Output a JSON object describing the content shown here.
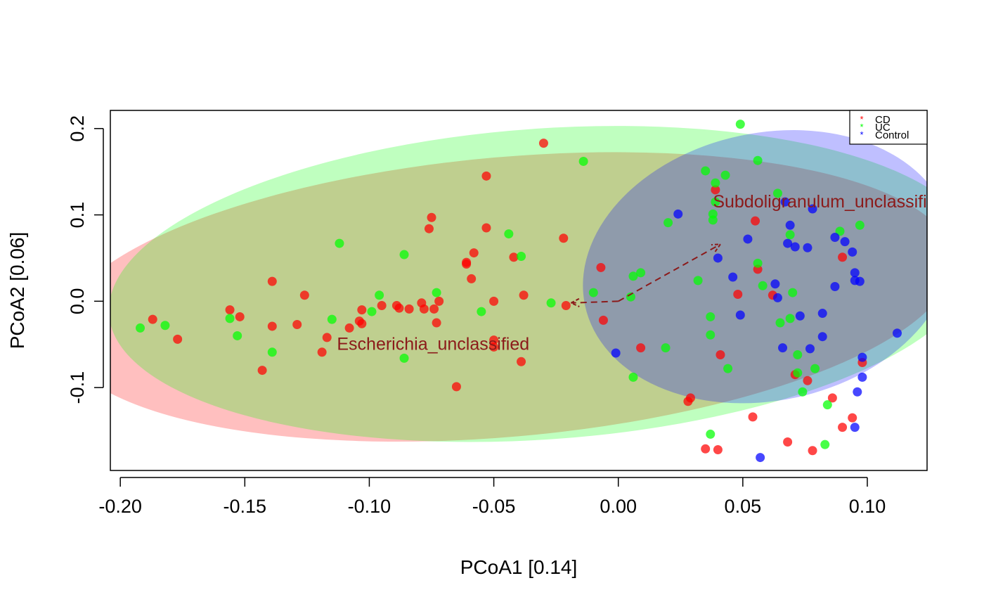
{
  "chart_data": {
    "type": "scatter",
    "title": "",
    "xlabel": "PCoA1 [0.14]",
    "ylabel": "PCoA2 [0.06]",
    "xlim": [
      -0.204,
      0.124
    ],
    "ylim": [
      -0.196,
      0.221
    ],
    "xticks": [
      -0.2,
      -0.15,
      -0.1,
      -0.05,
      0.0,
      0.05,
      0.1
    ],
    "xtick_labels": [
      "-0.20",
      "-0.15",
      "-0.10",
      "-0.05",
      "0.00",
      "0.05",
      "0.10"
    ],
    "yticks": [
      -0.1,
      0.0,
      0.1,
      0.2
    ],
    "ytick_labels": [
      "-0.1",
      "0.0",
      "0.1",
      "0.2"
    ],
    "grid": false,
    "legend_position": "top-right",
    "series": [
      {
        "name": "CD",
        "color": "#ff0000",
        "points": [
          [
            -0.187,
            -0.021
          ],
          [
            -0.177,
            -0.044
          ],
          [
            -0.156,
            -0.01
          ],
          [
            -0.152,
            -0.018
          ],
          [
            -0.143,
            -0.08
          ],
          [
            -0.139,
            -0.029
          ],
          [
            -0.139,
            0.023
          ],
          [
            -0.129,
            -0.027
          ],
          [
            -0.126,
            0.007
          ],
          [
            -0.119,
            -0.059
          ],
          [
            -0.117,
            -0.042
          ],
          [
            -0.108,
            -0.031
          ],
          [
            -0.104,
            -0.023
          ],
          [
            -0.103,
            -0.026
          ],
          [
            -0.103,
            -0.01
          ],
          [
            -0.095,
            -0.005
          ],
          [
            -0.089,
            -0.005
          ],
          [
            -0.088,
            -0.008
          ],
          [
            -0.084,
            -0.009
          ],
          [
            -0.079,
            -0.002
          ],
          [
            -0.078,
            -0.009
          ],
          [
            -0.076,
            0.084
          ],
          [
            -0.075,
            0.097
          ],
          [
            -0.074,
            -0.009
          ],
          [
            -0.073,
            -0.025
          ],
          [
            -0.072,
            0.0
          ],
          [
            -0.065,
            -0.099
          ],
          [
            -0.061,
            0.043
          ],
          [
            -0.061,
            0.045
          ],
          [
            -0.059,
            0.026
          ],
          [
            -0.058,
            0.056
          ],
          [
            -0.053,
            0.145
          ],
          [
            -0.053,
            0.085
          ],
          [
            -0.05,
            -0.045
          ],
          [
            -0.05,
            -0.053
          ],
          [
            -0.05,
            0.0
          ],
          [
            -0.042,
            0.051
          ],
          [
            -0.039,
            -0.07
          ],
          [
            -0.038,
            0.007
          ],
          [
            -0.03,
            0.183
          ],
          [
            -0.022,
            0.073
          ],
          [
            -0.021,
            -0.005
          ],
          [
            -0.007,
            0.039
          ],
          [
            -0.006,
            -0.022
          ],
          [
            0.009,
            -0.054
          ],
          [
            0.028,
            -0.116
          ],
          [
            0.029,
            -0.112
          ],
          [
            0.035,
            -0.171
          ],
          [
            0.04,
            -0.172
          ],
          [
            0.039,
            0.129
          ],
          [
            0.041,
            -0.062
          ],
          [
            0.048,
            0.008
          ],
          [
            0.054,
            -0.134
          ],
          [
            0.055,
            0.093
          ],
          [
            0.056,
            0.037
          ],
          [
            0.062,
            0.007
          ],
          [
            0.068,
            -0.163
          ],
          [
            0.071,
            -0.085
          ],
          [
            0.076,
            -0.092
          ],
          [
            0.078,
            -0.173
          ],
          [
            0.086,
            -0.112
          ],
          [
            0.09,
            -0.146
          ],
          [
            0.09,
            0.051
          ],
          [
            0.094,
            -0.135
          ],
          [
            0.098,
            -0.071
          ]
        ]
      },
      {
        "name": "UC",
        "color": "#00ff00",
        "points": [
          [
            -0.192,
            -0.031
          ],
          [
            -0.182,
            -0.028
          ],
          [
            -0.156,
            -0.02
          ],
          [
            -0.153,
            -0.04
          ],
          [
            -0.139,
            -0.059
          ],
          [
            -0.115,
            -0.021
          ],
          [
            -0.112,
            0.067
          ],
          [
            -0.099,
            -0.012
          ],
          [
            -0.096,
            0.007
          ],
          [
            -0.086,
            0.054
          ],
          [
            -0.086,
            -0.066
          ],
          [
            -0.073,
            0.01
          ],
          [
            -0.055,
            -0.012
          ],
          [
            -0.044,
            0.078
          ],
          [
            -0.039,
            0.052
          ],
          [
            -0.027,
            -0.002
          ],
          [
            -0.014,
            0.162
          ],
          [
            -0.01,
            0.01
          ],
          [
            0.005,
            0.005
          ],
          [
            0.006,
            0.029
          ],
          [
            0.006,
            -0.088
          ],
          [
            0.009,
            0.033
          ],
          [
            0.019,
            -0.054
          ],
          [
            0.02,
            0.091
          ],
          [
            0.032,
            0.024
          ],
          [
            0.035,
            0.151
          ],
          [
            0.037,
            -0.154
          ],
          [
            0.037,
            -0.018
          ],
          [
            0.037,
            -0.039
          ],
          [
            0.038,
            0.101
          ],
          [
            0.038,
            0.094
          ],
          [
            0.039,
            0.137
          ],
          [
            0.039,
            0.115
          ],
          [
            0.043,
            0.146
          ],
          [
            0.044,
            -0.078
          ],
          [
            0.049,
            0.205
          ],
          [
            0.056,
            0.163
          ],
          [
            0.056,
            0.044
          ],
          [
            0.058,
            0.018
          ],
          [
            0.064,
            0.125
          ],
          [
            0.065,
            -0.025
          ],
          [
            0.069,
            -0.02
          ],
          [
            0.069,
            0.077
          ],
          [
            0.07,
            0.01
          ],
          [
            0.072,
            -0.083
          ],
          [
            0.072,
            -0.062
          ],
          [
            0.074,
            -0.105
          ],
          [
            0.079,
            -0.078
          ],
          [
            0.083,
            -0.166
          ],
          [
            0.084,
            -0.12
          ],
          [
            0.089,
            0.081
          ],
          [
            0.097,
            0.088
          ]
        ]
      },
      {
        "name": "Control",
        "color": "#0000ff",
        "points": [
          [
            -0.001,
            -0.06
          ],
          [
            0.024,
            0.101
          ],
          [
            0.04,
            0.05
          ],
          [
            0.046,
            0.028
          ],
          [
            0.049,
            -0.016
          ],
          [
            0.052,
            0.072
          ],
          [
            0.057,
            -0.181
          ],
          [
            0.063,
            0.02
          ],
          [
            0.064,
            0.004
          ],
          [
            0.066,
            -0.054
          ],
          [
            0.067,
            0.115
          ],
          [
            0.068,
            0.067
          ],
          [
            0.069,
            0.088
          ],
          [
            0.071,
            0.063
          ],
          [
            0.073,
            -0.017
          ],
          [
            0.076,
            0.062
          ],
          [
            0.077,
            -0.055
          ],
          [
            0.078,
            0.107
          ],
          [
            0.082,
            -0.014
          ],
          [
            0.082,
            -0.041
          ],
          [
            0.087,
            0.017
          ],
          [
            0.087,
            0.074
          ],
          [
            0.091,
            0.069
          ],
          [
            0.094,
            0.057
          ],
          [
            0.095,
            0.033
          ],
          [
            0.095,
            0.024
          ],
          [
            0.095,
            -0.146
          ],
          [
            0.096,
            -0.105
          ],
          [
            0.097,
            0.023
          ],
          [
            0.098,
            -0.065
          ],
          [
            0.098,
            -0.088
          ],
          [
            0.112,
            -0.037
          ]
        ]
      }
    ],
    "ellipses": [
      {
        "group": "CD",
        "color": "#ff0000",
        "cx": -0.045,
        "cy": 0.005,
        "rx": 0.18,
        "ry": 0.162,
        "angle": -5
      },
      {
        "group": "UC",
        "color": "#00ff00",
        "cx": -0.03,
        "cy": 0.02,
        "rx": 0.175,
        "ry": 0.18,
        "angle": -4
      },
      {
        "group": "Control",
        "color": "#0000ff",
        "cx": 0.06,
        "cy": 0.04,
        "rx": 0.075,
        "ry": 0.155,
        "angle": -12
      }
    ],
    "biplot": [
      {
        "label": "Subdoligranulum_unclassified",
        "color": "#8b1a1a",
        "from": [
          0.0,
          0.0
        ],
        "to": [
          0.041,
          0.066
        ],
        "label_pos": [
          0.038,
          0.116
        ]
      },
      {
        "label": "Escherichia_unclassified",
        "color": "#8b1a1a",
        "from": [
          0.0,
          0.0
        ],
        "to": [
          -0.019,
          -0.002
        ],
        "label_pos": [
          -0.113,
          -0.049
        ]
      }
    ]
  }
}
